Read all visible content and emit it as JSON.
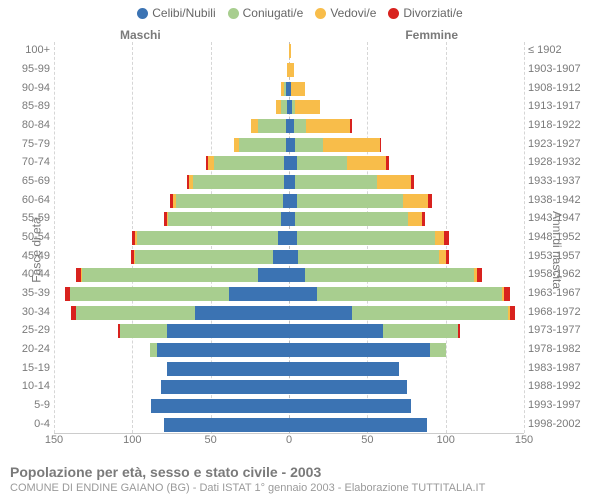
{
  "legend": [
    {
      "label": "Celibi/Nubili",
      "color": "#3b73b3"
    },
    {
      "label": "Coniugati/e",
      "color": "#a8ce8f"
    },
    {
      "label": "Vedovi/e",
      "color": "#f8bd4a"
    },
    {
      "label": "Divorziati/e",
      "color": "#d8221e"
    }
  ],
  "labels": {
    "maleHeader": "Maschi",
    "femaleHeader": "Femmine",
    "yLeftTitle": "Fasce di età",
    "yRightTitle": "Anni di nascita"
  },
  "axis": {
    "max": 150,
    "ticks": [
      150,
      100,
      50,
      0,
      50,
      100,
      150
    ],
    "gridColor": "#d6d6d6"
  },
  "colors": {
    "celibi": "#3b73b3",
    "coniugati": "#a8ce8f",
    "vedovi": "#f8bd4a",
    "divorziati": "#d8221e",
    "bg": "#ffffff",
    "text": "#7a7a7a"
  },
  "typography": {
    "legend_fontsize": 12,
    "axis_fontsize": 11,
    "title_fontsize": 14,
    "subtitle_fontsize": 11
  },
  "rows": [
    {
      "age": "100+",
      "birth": "≤ 1902",
      "m": {
        "c": 0,
        "k": 0,
        "v": 0,
        "d": 0
      },
      "f": {
        "c": 0,
        "k": 0,
        "v": 1,
        "d": 0
      }
    },
    {
      "age": "95-99",
      "birth": "1903-1907",
      "m": {
        "c": 0,
        "k": 0,
        "v": 1,
        "d": 0
      },
      "f": {
        "c": 0,
        "k": 0,
        "v": 3,
        "d": 0
      }
    },
    {
      "age": "90-94",
      "birth": "1908-1912",
      "m": {
        "c": 2,
        "k": 1,
        "v": 2,
        "d": 0
      },
      "f": {
        "c": 1,
        "k": 0,
        "v": 9,
        "d": 0
      }
    },
    {
      "age": "85-89",
      "birth": "1913-1917",
      "m": {
        "c": 1,
        "k": 4,
        "v": 3,
        "d": 0
      },
      "f": {
        "c": 2,
        "k": 2,
        "v": 16,
        "d": 0
      }
    },
    {
      "age": "80-84",
      "birth": "1918-1922",
      "m": {
        "c": 2,
        "k": 18,
        "v": 4,
        "d": 0
      },
      "f": {
        "c": 3,
        "k": 8,
        "v": 28,
        "d": 1
      }
    },
    {
      "age": "75-79",
      "birth": "1923-1927",
      "m": {
        "c": 2,
        "k": 30,
        "v": 3,
        "d": 0
      },
      "f": {
        "c": 4,
        "k": 18,
        "v": 36,
        "d": 1
      }
    },
    {
      "age": "70-74",
      "birth": "1928-1932",
      "m": {
        "c": 3,
        "k": 45,
        "v": 4,
        "d": 1
      },
      "f": {
        "c": 5,
        "k": 32,
        "v": 25,
        "d": 2
      }
    },
    {
      "age": "65-69",
      "birth": "1933-1937",
      "m": {
        "c": 3,
        "k": 58,
        "v": 3,
        "d": 1
      },
      "f": {
        "c": 4,
        "k": 52,
        "v": 22,
        "d": 2
      }
    },
    {
      "age": "60-64",
      "birth": "1938-1942",
      "m": {
        "c": 4,
        "k": 68,
        "v": 2,
        "d": 2
      },
      "f": {
        "c": 5,
        "k": 68,
        "v": 16,
        "d": 2
      }
    },
    {
      "age": "55-59",
      "birth": "1943-1947",
      "m": {
        "c": 5,
        "k": 72,
        "v": 1,
        "d": 2
      },
      "f": {
        "c": 4,
        "k": 72,
        "v": 9,
        "d": 2
      }
    },
    {
      "age": "50-54",
      "birth": "1948-1952",
      "m": {
        "c": 7,
        "k": 90,
        "v": 1,
        "d": 2
      },
      "f": {
        "c": 5,
        "k": 88,
        "v": 6,
        "d": 3
      }
    },
    {
      "age": "45-49",
      "birth": "1953-1957",
      "m": {
        "c": 10,
        "k": 88,
        "v": 1,
        "d": 2
      },
      "f": {
        "c": 6,
        "k": 90,
        "v": 4,
        "d": 2
      }
    },
    {
      "age": "40-44",
      "birth": "1958-1962",
      "m": {
        "c": 20,
        "k": 112,
        "v": 1,
        "d": 3
      },
      "f": {
        "c": 10,
        "k": 108,
        "v": 2,
        "d": 3
      }
    },
    {
      "age": "35-39",
      "birth": "1963-1967",
      "m": {
        "c": 38,
        "k": 102,
        "v": 0,
        "d": 3
      },
      "f": {
        "c": 18,
        "k": 118,
        "v": 1,
        "d": 4
      }
    },
    {
      "age": "30-34",
      "birth": "1968-1972",
      "m": {
        "c": 60,
        "k": 76,
        "v": 0,
        "d": 3
      },
      "f": {
        "c": 40,
        "k": 100,
        "v": 1,
        "d": 3
      }
    },
    {
      "age": "25-29",
      "birth": "1973-1977",
      "m": {
        "c": 78,
        "k": 30,
        "v": 0,
        "d": 1
      },
      "f": {
        "c": 60,
        "k": 48,
        "v": 0,
        "d": 1
      }
    },
    {
      "age": "20-24",
      "birth": "1978-1982",
      "m": {
        "c": 84,
        "k": 5,
        "v": 0,
        "d": 0
      },
      "f": {
        "c": 90,
        "k": 10,
        "v": 0,
        "d": 0
      }
    },
    {
      "age": "15-19",
      "birth": "1983-1987",
      "m": {
        "c": 78,
        "k": 0,
        "v": 0,
        "d": 0
      },
      "f": {
        "c": 70,
        "k": 0,
        "v": 0,
        "d": 0
      }
    },
    {
      "age": "10-14",
      "birth": "1988-1992",
      "m": {
        "c": 82,
        "k": 0,
        "v": 0,
        "d": 0
      },
      "f": {
        "c": 75,
        "k": 0,
        "v": 0,
        "d": 0
      }
    },
    {
      "age": "5-9",
      "birth": "1993-1997",
      "m": {
        "c": 88,
        "k": 0,
        "v": 0,
        "d": 0
      },
      "f": {
        "c": 78,
        "k": 0,
        "v": 0,
        "d": 0
      }
    },
    {
      "age": "0-4",
      "birth": "1998-2002",
      "m": {
        "c": 80,
        "k": 0,
        "v": 0,
        "d": 0
      },
      "f": {
        "c": 88,
        "k": 0,
        "v": 0,
        "d": 0
      }
    }
  ],
  "footer": {
    "title": "Popolazione per età, sesso e stato civile - 2003",
    "subtitle": "COMUNE DI ENDINE GAIANO (BG) - Dati ISTAT 1° gennaio 2003 - Elaborazione TUTTITALIA.IT"
  }
}
